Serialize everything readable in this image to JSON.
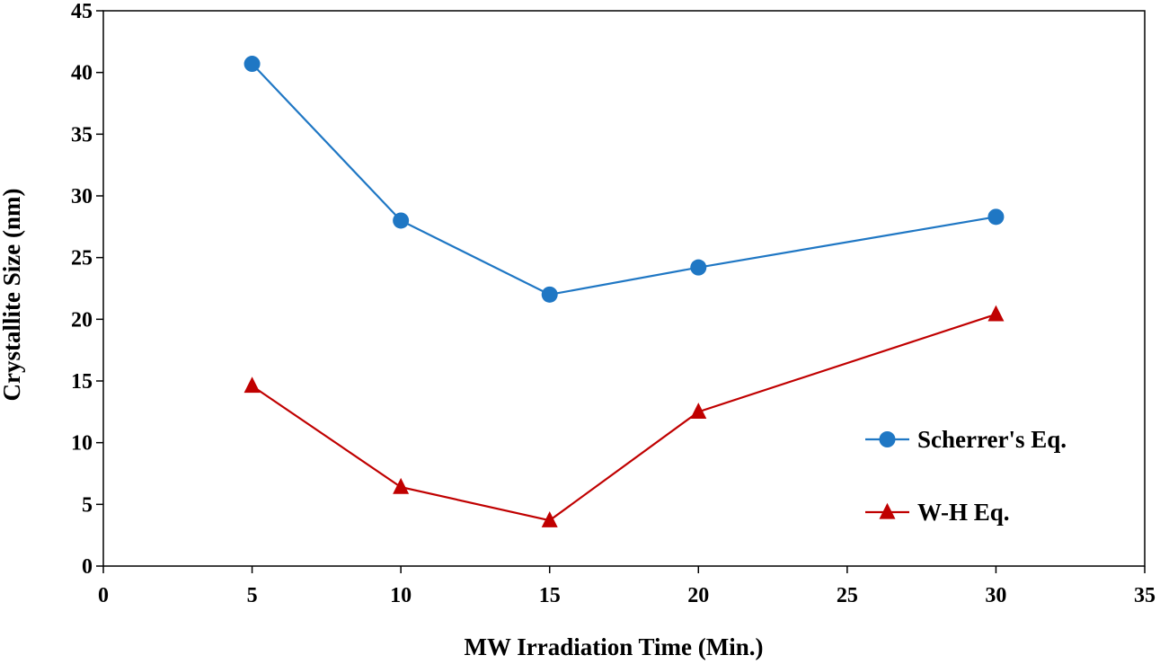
{
  "chart_data": {
    "type": "line",
    "xlabel": "MW Irradiation Time (Min.)",
    "ylabel": "Crystallite Size (nm)",
    "xlim": [
      0,
      35
    ],
    "ylim": [
      0,
      45
    ],
    "xticks": [
      0,
      5,
      10,
      15,
      20,
      25,
      30,
      35
    ],
    "yticks": [
      0,
      5,
      10,
      15,
      20,
      25,
      30,
      35,
      40,
      45
    ],
    "grid": false,
    "legend_position": "right",
    "x": [
      5,
      10,
      15,
      20,
      30
    ],
    "series": [
      {
        "name": "Scherrer's Eq.",
        "values": [
          40.7,
          28.0,
          22.0,
          24.2,
          28.3
        ],
        "color": "#1f77c4",
        "marker": "circle"
      },
      {
        "name": "W-H Eq.",
        "values": [
          14.6,
          6.4,
          3.7,
          12.5,
          20.4
        ],
        "color": "#c00000",
        "marker": "triangle"
      }
    ]
  }
}
